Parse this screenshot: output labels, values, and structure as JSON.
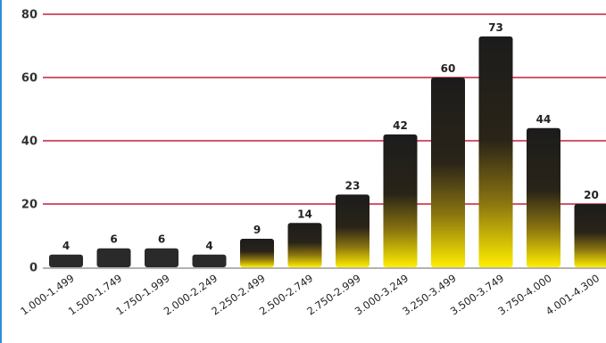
{
  "chart_data": {
    "type": "bar",
    "categories": [
      "1.000-1.499",
      "1.500-1.749",
      "1.750-1.999",
      "2.000-2.249",
      "2.250-2.499",
      "2.500-2.749",
      "2.750-2.999",
      "3.000-3.249",
      "3.250-3.499",
      "3.500-3.749",
      "3.750-4.000",
      "4.001-4.300"
    ],
    "values": [
      4,
      6,
      6,
      4,
      9,
      14,
      23,
      42,
      60,
      73,
      44,
      20
    ],
    "ylim": [
      0,
      80
    ],
    "yticks": [
      0,
      20,
      40,
      60,
      80
    ],
    "grid": true,
    "legend": "none",
    "title": "",
    "xlabel": "",
    "ylabel": "",
    "colors": {
      "gridline": "#c0203a",
      "bar_top": "#1c1c1c",
      "bar_bottom": "#ffee00",
      "bar_plain": "#2a2a2a",
      "axis": "#9a9a9a",
      "left_edge": "#2f8fd6"
    }
  }
}
